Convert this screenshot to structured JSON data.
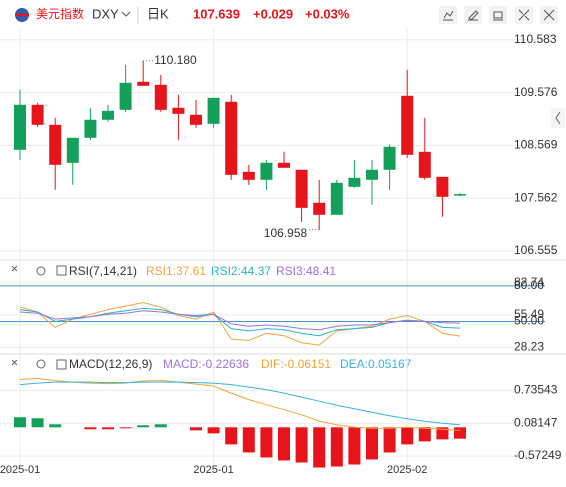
{
  "chart_data": [
    {
      "type": "candlestick",
      "title": "美元指数",
      "symbol": "DXY",
      "period": "日K",
      "last": "107.639",
      "change": "+0.029",
      "change_pct": "+0.03%",
      "categories": [
        "2025-01",
        null,
        null,
        null,
        null,
        null,
        null,
        null,
        null,
        null,
        null,
        "2025-01",
        null,
        null,
        null,
        null,
        null,
        null,
        null,
        null,
        null,
        null,
        "2025-02",
        null,
        null,
        null
      ],
      "open": [
        108.484,
        109.343,
        108.961,
        108.236,
        108.713,
        109.057,
        109.247,
        109.782,
        109.724,
        109.286,
        109.152,
        108.98,
        109.4,
        108.064,
        107.912,
        108.236,
        108.103,
        107.473,
        107.244,
        107.778,
        107.912,
        108.103,
        109.515,
        108.446,
        107.969,
        107.61
      ],
      "high": [
        109.629,
        109.381,
        109.095,
        108.713,
        109.286,
        109.343,
        110.106,
        110.18,
        109.915,
        109.534,
        109.438,
        109.476,
        109.534,
        108.198,
        108.293,
        108.446,
        108.103,
        107.912,
        107.912,
        108.293,
        108.293,
        108.58,
        110.011,
        109.095,
        107.969,
        107.66
      ],
      "low": [
        108.293,
        108.923,
        107.721,
        107.816,
        108.675,
        109.018,
        109.209,
        109.705,
        109.209,
        108.675,
        108.904,
        108.904,
        107.912,
        107.816,
        107.721,
        108.141,
        107.11,
        106.958,
        107.244,
        107.759,
        107.435,
        107.721,
        108.332,
        107.912,
        107.206,
        107.6
      ],
      "close": [
        109.343,
        108.961,
        108.198,
        108.713,
        109.057,
        109.228,
        109.763,
        109.705,
        109.247,
        109.171,
        108.961,
        109.476,
        108.007,
        107.912,
        108.236,
        108.141,
        107.377,
        107.244,
        107.855,
        107.95,
        108.103,
        108.541,
        108.389,
        107.95,
        107.587,
        107.639
      ],
      "up_color": "#14a05a",
      "down_color": "#e8141b",
      "ylim": [
        106.42,
        110.77
      ],
      "yticks": [
        {
          "value": 110.583,
          "label": "110.583"
        },
        {
          "value": 109.576,
          "label": "109.576"
        },
        {
          "value": 108.569,
          "label": "108.569"
        },
        {
          "value": 107.562,
          "label": "107.562"
        },
        {
          "value": 106.555,
          "label": "106.555"
        }
      ],
      "annotations": [
        {
          "value": 110.18,
          "label": "110.180"
        },
        {
          "value": 106.958,
          "label": "106.958"
        }
      ],
      "grid": true
    },
    {
      "type": "line",
      "title": "RSI(7,14,21)",
      "series": [
        {
          "name": "RSI1",
          "legend_label": "RSI1:37.61",
          "color": "#f2a33a",
          "values": [
            62,
            58,
            45,
            52,
            56,
            60,
            63,
            66,
            62,
            55,
            52,
            58,
            35,
            34,
            40,
            38,
            32,
            30,
            42,
            44,
            46,
            52,
            55,
            50,
            40,
            37.61
          ]
        },
        {
          "name": "RSI2",
          "legend_label": "RSI2:44.37",
          "color": "#2bb3c6",
          "values": [
            60,
            58,
            50,
            52,
            54,
            57,
            59,
            61,
            60,
            56,
            54,
            56,
            44,
            42,
            44,
            43,
            40,
            38,
            43,
            44,
            45,
            49,
            51,
            50,
            45,
            44.37
          ]
        },
        {
          "name": "RSI3",
          "legend_label": "RSI3:48.41",
          "color": "#9b72d9",
          "values": [
            58,
            57,
            52,
            53,
            54,
            56,
            57,
            59,
            58,
            56,
            55,
            56,
            48,
            46,
            47,
            46,
            44,
            43,
            46,
            47,
            47,
            49,
            51,
            50,
            49,
            48.41
          ]
        }
      ],
      "ylim": [
        24.2,
        85
      ],
      "yticks": [
        82.74,
        55.49,
        28.23
      ],
      "reference_lines": [
        {
          "value": 80,
          "label": "80.00"
        },
        {
          "value": 50,
          "label": "50.00"
        }
      ],
      "reference_color": "#4a90c8"
    },
    {
      "type": "macd",
      "title": "MACD(12,26,9)",
      "histogram": {
        "name": "MACD",
        "legend_label": "MACD:-0.22636",
        "color": "#9b72d9",
        "values": [
          0.2,
          0.18,
          0.06,
          0,
          -0.04,
          -0.04,
          -0.02,
          0.04,
          0.06,
          0,
          -0.06,
          -0.12,
          -0.34,
          -0.5,
          -0.6,
          -0.66,
          -0.7,
          -0.8,
          -0.78,
          -0.74,
          -0.64,
          -0.5,
          -0.34,
          -0.28,
          -0.24,
          -0.22636
        ],
        "up_color": "#14a05a",
        "down_color": "#e8141b"
      },
      "series": [
        {
          "name": "DIF",
          "legend_label": "DIF:-0.06151",
          "color": "#f2a33a",
          "values": [
            0.95,
            0.97,
            0.93,
            0.9,
            0.88,
            0.87,
            0.88,
            0.92,
            0.93,
            0.9,
            0.86,
            0.82,
            0.68,
            0.55,
            0.45,
            0.35,
            0.25,
            0.12,
            0.05,
            0.0,
            -0.02,
            -0.02,
            0.0,
            -0.02,
            -0.04,
            -0.06151
          ]
        },
        {
          "name": "DEA",
          "legend_label": "DEA:0.05167",
          "color": "#3ab3d9",
          "values": [
            0.85,
            0.88,
            0.9,
            0.9,
            0.9,
            0.89,
            0.89,
            0.9,
            0.9,
            0.9,
            0.89,
            0.88,
            0.85,
            0.8,
            0.75,
            0.68,
            0.6,
            0.52,
            0.44,
            0.37,
            0.3,
            0.23,
            0.17,
            0.12,
            0.08,
            0.05167
          ]
        }
      ],
      "ylim": [
        -0.75,
        1.1
      ],
      "yticks": [
        0.73543,
        0.08147,
        -0.57249
      ]
    }
  ]
}
